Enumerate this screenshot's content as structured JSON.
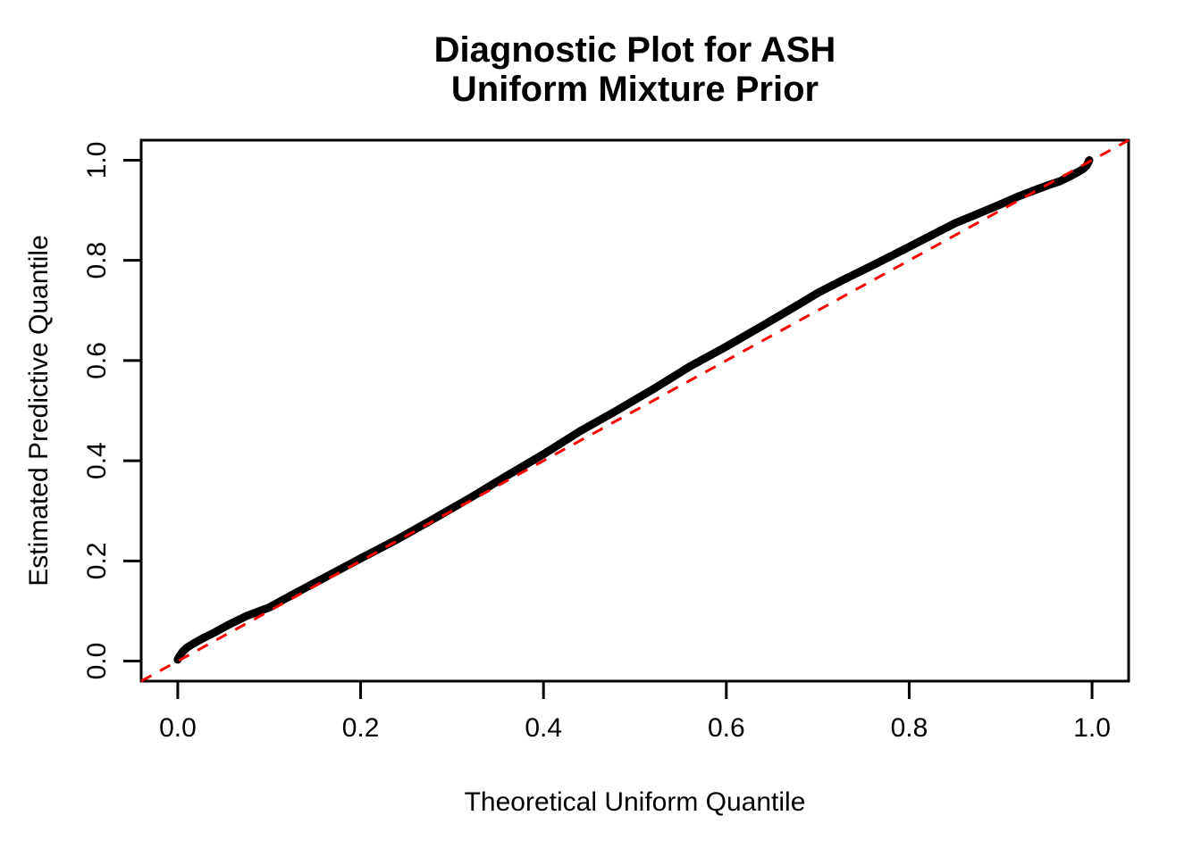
{
  "figure": {
    "background_color": "#FFFFFF",
    "title_line1": "Diagnostic Plot for ASH",
    "title_line2": "Uniform Mixture Prior"
  },
  "chart_data": {
    "type": "line",
    "title": "Diagnostic Plot for ASH\nUniform Mixture Prior",
    "title_lines": [
      "Diagnostic Plot for ASH",
      "Uniform Mixture Prior"
    ],
    "xlabel": "Theoretical Uniform Quantile",
    "ylabel": "Estimated Predictive Quantile",
    "xlim": [
      -0.04,
      1.04
    ],
    "ylim": [
      -0.04,
      1.04
    ],
    "grid": false,
    "legend": "none",
    "x_ticks": [
      0.0,
      0.2,
      0.4,
      0.6,
      0.8,
      1.0
    ],
    "y_ticks": [
      0.0,
      0.2,
      0.4,
      0.6,
      0.8,
      1.0
    ],
    "x_tick_labels": [
      "0.0",
      "0.2",
      "0.4",
      "0.6",
      "0.8",
      "1.0"
    ],
    "y_tick_labels": [
      "0.0",
      "0.2",
      "0.4",
      "0.6",
      "0.8",
      "1.0"
    ],
    "series": [
      {
        "name": "estimated-predictive-quantiles",
        "color": "#000000",
        "style": "thick-solid",
        "points": [
          [
            0.0,
            0.003
          ],
          [
            0.002,
            0.01
          ],
          [
            0.005,
            0.018
          ],
          [
            0.01,
            0.027
          ],
          [
            0.018,
            0.036
          ],
          [
            0.028,
            0.046
          ],
          [
            0.04,
            0.057
          ],
          [
            0.055,
            0.072
          ],
          [
            0.075,
            0.09
          ],
          [
            0.1,
            0.107
          ],
          [
            0.13,
            0.137
          ],
          [
            0.16,
            0.166
          ],
          [
            0.2,
            0.205
          ],
          [
            0.24,
            0.243
          ],
          [
            0.28,
            0.284
          ],
          [
            0.32,
            0.326
          ],
          [
            0.36,
            0.37
          ],
          [
            0.4,
            0.413
          ],
          [
            0.44,
            0.459
          ],
          [
            0.48,
            0.5
          ],
          [
            0.52,
            0.543
          ],
          [
            0.56,
            0.588
          ],
          [
            0.6,
            0.628
          ],
          [
            0.64,
            0.67
          ],
          [
            0.68,
            0.713
          ],
          [
            0.7,
            0.735
          ],
          [
            0.73,
            0.763
          ],
          [
            0.76,
            0.79
          ],
          [
            0.8,
            0.827
          ],
          [
            0.85,
            0.874
          ],
          [
            0.87,
            0.889
          ],
          [
            0.9,
            0.912
          ],
          [
            0.92,
            0.928
          ],
          [
            0.94,
            0.942
          ],
          [
            0.955,
            0.952
          ],
          [
            0.965,
            0.958
          ],
          [
            0.975,
            0.967
          ],
          [
            0.985,
            0.977
          ],
          [
            0.99,
            0.982
          ],
          [
            0.994,
            0.989
          ],
          [
            0.996,
            0.996
          ],
          [
            0.997,
            1.0
          ]
        ]
      },
      {
        "name": "reference-line-y-equals-x",
        "color": "#FF0000",
        "style": "dashed",
        "points": [
          [
            -0.04,
            -0.04
          ],
          [
            1.04,
            1.04
          ]
        ]
      }
    ]
  },
  "colors": {
    "curve": "#000000",
    "reference_line": "#FF0000",
    "axis": "#000000",
    "background": "#FFFFFF"
  }
}
